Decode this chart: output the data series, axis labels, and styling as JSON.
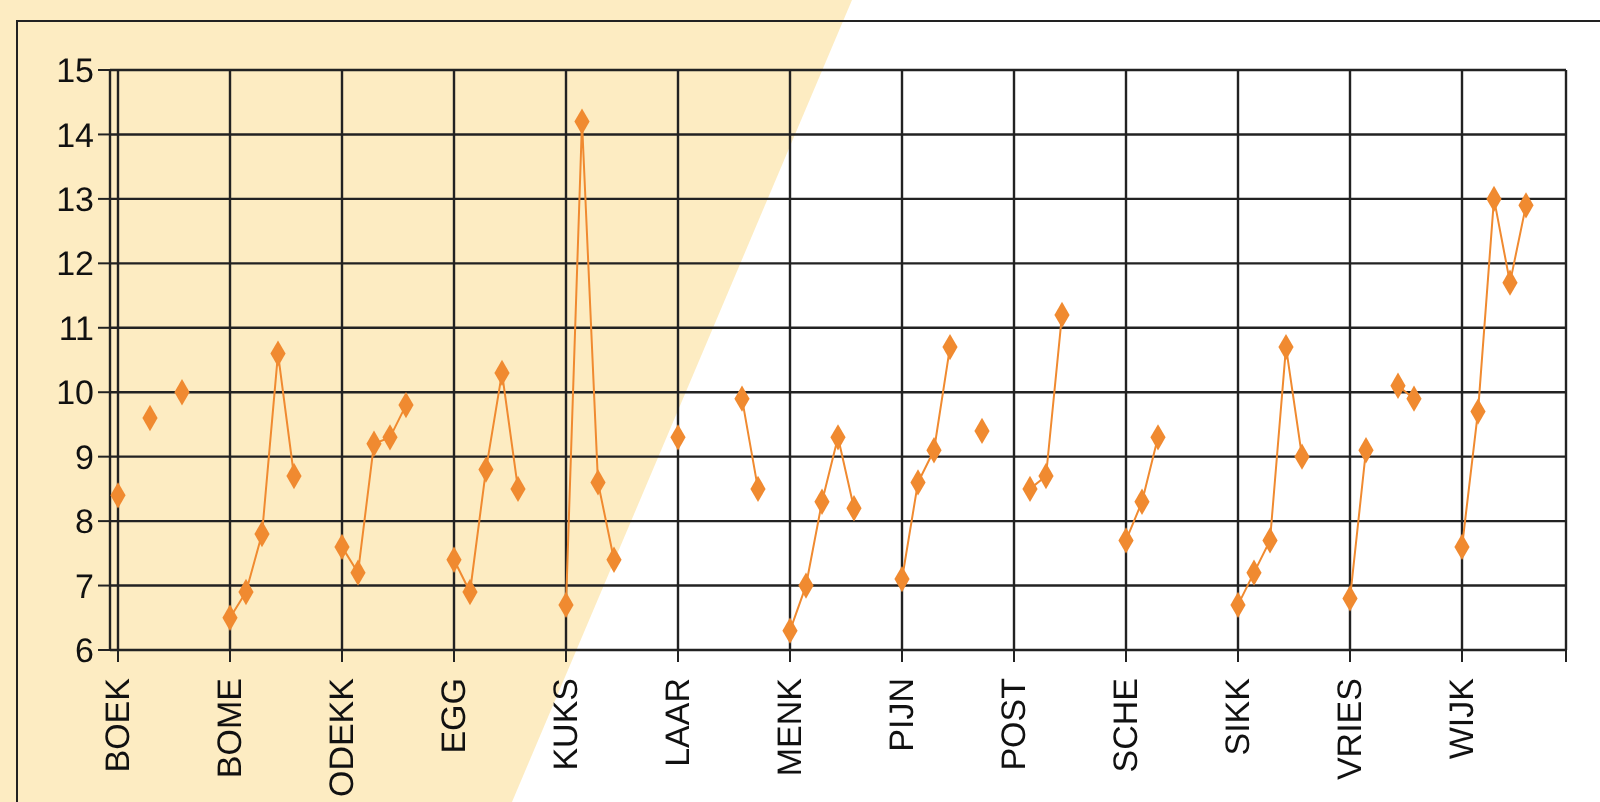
{
  "chart_data": {
    "type": "line",
    "categories": [
      "BOEK",
      null,
      null,
      null,
      null,
      null,
      null,
      "BOME",
      null,
      null,
      null,
      null,
      null,
      null,
      "ODEKK",
      null,
      null,
      null,
      null,
      null,
      null,
      "EGG",
      null,
      null,
      null,
      null,
      null,
      null,
      "KUKS",
      null,
      null,
      null,
      null,
      null,
      null,
      "LAAR",
      null,
      null,
      null,
      null,
      null,
      null,
      "MENK",
      null,
      null,
      null,
      null,
      null,
      null,
      "PIJN",
      null,
      null,
      null,
      null,
      null,
      null,
      "POST",
      null,
      null,
      null,
      null,
      null,
      null,
      "SCHE",
      null,
      null,
      null,
      null,
      null,
      null,
      "SIKK",
      null,
      null,
      null,
      null,
      null,
      null,
      "VRIES",
      null,
      null,
      null,
      null,
      null,
      null,
      "WIJK",
      null,
      null,
      null,
      null,
      null,
      null
    ],
    "series": [
      {
        "color": "#f08a30",
        "values": [
          8.4,
          null,
          9.6,
          null,
          10.0,
          null,
          null,
          6.5,
          6.9,
          7.8,
          10.6,
          8.7,
          null,
          null,
          7.6,
          7.2,
          9.2,
          9.3,
          9.8,
          null,
          null,
          7.4,
          6.9,
          8.8,
          10.3,
          8.5,
          null,
          null,
          6.7,
          14.2,
          8.6,
          7.4,
          null,
          null,
          null,
          9.3,
          null,
          null,
          null,
          9.9,
          8.5,
          null,
          6.3,
          7.0,
          8.3,
          9.3,
          8.2,
          null,
          null,
          7.1,
          8.6,
          9.1,
          10.7,
          null,
          9.4,
          null,
          null,
          8.5,
          8.7,
          11.2,
          null,
          null,
          null,
          7.7,
          8.3,
          9.3,
          null,
          null,
          null,
          null,
          6.7,
          7.2,
          7.7,
          10.7,
          9.0,
          null,
          null,
          6.8,
          9.1,
          null,
          10.1,
          9.9,
          null,
          null,
          7.6,
          9.7,
          13.0,
          11.7,
          12.9,
          null,
          null
        ]
      }
    ],
    "ylim": [
      6,
      15
    ],
    "yticks": [
      6,
      7,
      8,
      9,
      10,
      11,
      12,
      13,
      14,
      15
    ],
    "grid": true,
    "marker": "diamond",
    "line_style": "solid"
  }
}
